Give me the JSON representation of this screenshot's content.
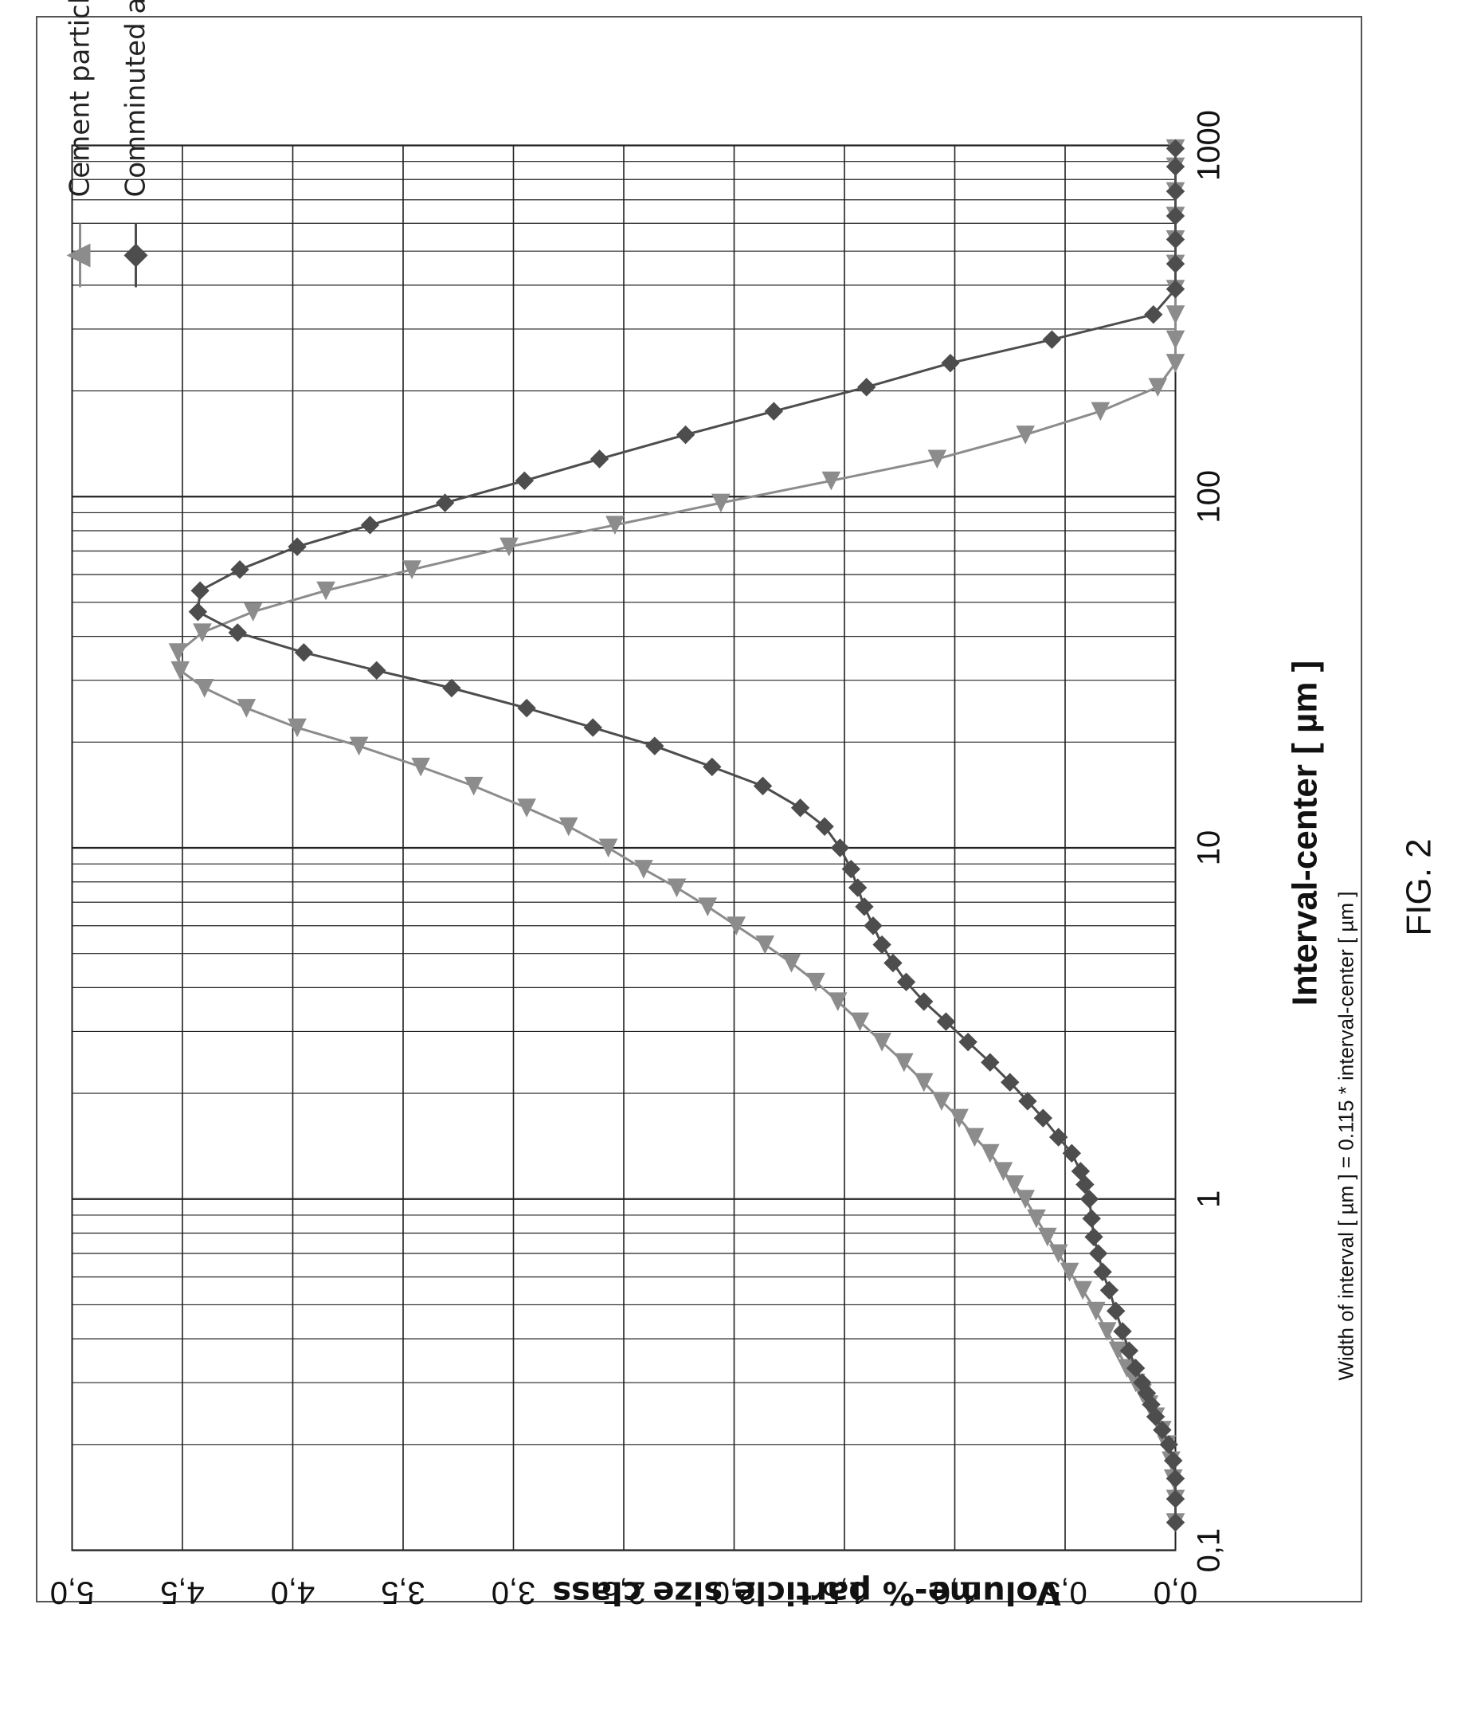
{
  "figure_label": "FIG. 2",
  "chart_data": {
    "type": "line",
    "xscale": "log",
    "xlim": [
      0.1,
      1000
    ],
    "ylim": [
      0.0,
      5.0
    ],
    "xlabel": "Interval-center [ µm ]",
    "ylabel": "Volume-% particle size class",
    "x_note": "Width of interval [ µm ] = 0.115 * interval-center [ µm ]",
    "xticks": [
      "0,1",
      "1",
      "10",
      "100",
      "1000"
    ],
    "yticks": [
      "0,0",
      "0,5",
      "1,0",
      "1,5",
      "2,0",
      "2,5",
      "3,0",
      "3,5",
      "4,0",
      "4,5",
      "5,0"
    ],
    "grid": true,
    "legend_position": "top-left",
    "series": [
      {
        "name": "Cement particles",
        "marker": "triangle",
        "color": "#8c8c8c",
        "x": [
          0.12,
          0.14,
          0.16,
          0.18,
          0.2,
          0.22,
          0.24,
          0.26,
          0.28,
          0.3,
          0.33,
          0.37,
          0.42,
          0.48,
          0.55,
          0.62,
          0.7,
          0.78,
          0.88,
          1.0,
          1.1,
          1.2,
          1.35,
          1.5,
          1.7,
          1.9,
          2.15,
          2.45,
          2.8,
          3.2,
          3.65,
          4.15,
          4.7,
          5.3,
          6.0,
          6.8,
          7.7,
          8.7,
          10.0,
          11.5,
          13.0,
          15.0,
          17.0,
          19.5,
          22.0,
          25.0,
          28.5,
          32.0,
          36.0,
          41.0,
          47.0,
          54.0,
          62.0,
          72.0,
          83.0,
          96.0,
          111.0,
          128.0,
          150,
          175,
          205,
          240,
          280,
          330,
          390,
          460,
          540,
          630,
          740,
          870,
          980
        ],
        "values": [
          0.0,
          0.0,
          0.01,
          0.02,
          0.04,
          0.06,
          0.09,
          0.12,
          0.15,
          0.18,
          0.22,
          0.26,
          0.31,
          0.36,
          0.42,
          0.48,
          0.53,
          0.58,
          0.63,
          0.68,
          0.73,
          0.78,
          0.84,
          0.91,
          0.98,
          1.06,
          1.14,
          1.23,
          1.33,
          1.43,
          1.53,
          1.63,
          1.74,
          1.86,
          1.99,
          2.12,
          2.26,
          2.41,
          2.57,
          2.75,
          2.94,
          3.18,
          3.42,
          3.7,
          3.98,
          4.21,
          4.4,
          4.51,
          4.52,
          4.41,
          4.18,
          3.85,
          3.46,
          3.02,
          2.54,
          2.06,
          1.56,
          1.08,
          0.68,
          0.34,
          0.08,
          0.0,
          0.0,
          0.0,
          0.0,
          0.0,
          0.0,
          0.0,
          0.0,
          0.0,
          0.0
        ]
      },
      {
        "name": "Comminuted air-cured FC material using pendular mill",
        "marker": "diamond",
        "color": "#4d4d4d",
        "x": [
          0.12,
          0.14,
          0.16,
          0.18,
          0.2,
          0.22,
          0.24,
          0.26,
          0.28,
          0.3,
          0.33,
          0.37,
          0.42,
          0.48,
          0.55,
          0.62,
          0.7,
          0.78,
          0.88,
          1.0,
          1.1,
          1.2,
          1.35,
          1.5,
          1.7,
          1.9,
          2.15,
          2.45,
          2.8,
          3.2,
          3.65,
          4.15,
          4.7,
          5.3,
          6.0,
          6.8,
          7.7,
          8.7,
          10.0,
          11.5,
          13.0,
          15.0,
          17.0,
          19.5,
          22.0,
          25.0,
          28.5,
          32.0,
          36.0,
          41.0,
          47.0,
          54.0,
          62.0,
          72.0,
          83.0,
          96.0,
          111.0,
          128.0,
          150,
          175,
          205,
          240,
          280,
          330,
          390,
          460,
          540,
          630,
          740,
          870,
          980
        ],
        "values": [
          0.0,
          0.0,
          0.0,
          0.01,
          0.03,
          0.06,
          0.09,
          0.11,
          0.13,
          0.15,
          0.18,
          0.21,
          0.24,
          0.27,
          0.3,
          0.33,
          0.35,
          0.37,
          0.38,
          0.39,
          0.41,
          0.43,
          0.47,
          0.53,
          0.6,
          0.67,
          0.75,
          0.84,
          0.94,
          1.04,
          1.14,
          1.22,
          1.28,
          1.33,
          1.37,
          1.41,
          1.44,
          1.47,
          1.52,
          1.59,
          1.7,
          1.87,
          2.1,
          2.36,
          2.64,
          2.94,
          3.28,
          3.62,
          3.95,
          4.25,
          4.43,
          4.42,
          4.24,
          3.98,
          3.65,
          3.31,
          2.95,
          2.61,
          2.22,
          1.82,
          1.4,
          1.02,
          0.56,
          0.1,
          0.0,
          0.0,
          0.0,
          0.0,
          0.0,
          0.0,
          0.0
        ]
      }
    ]
  }
}
